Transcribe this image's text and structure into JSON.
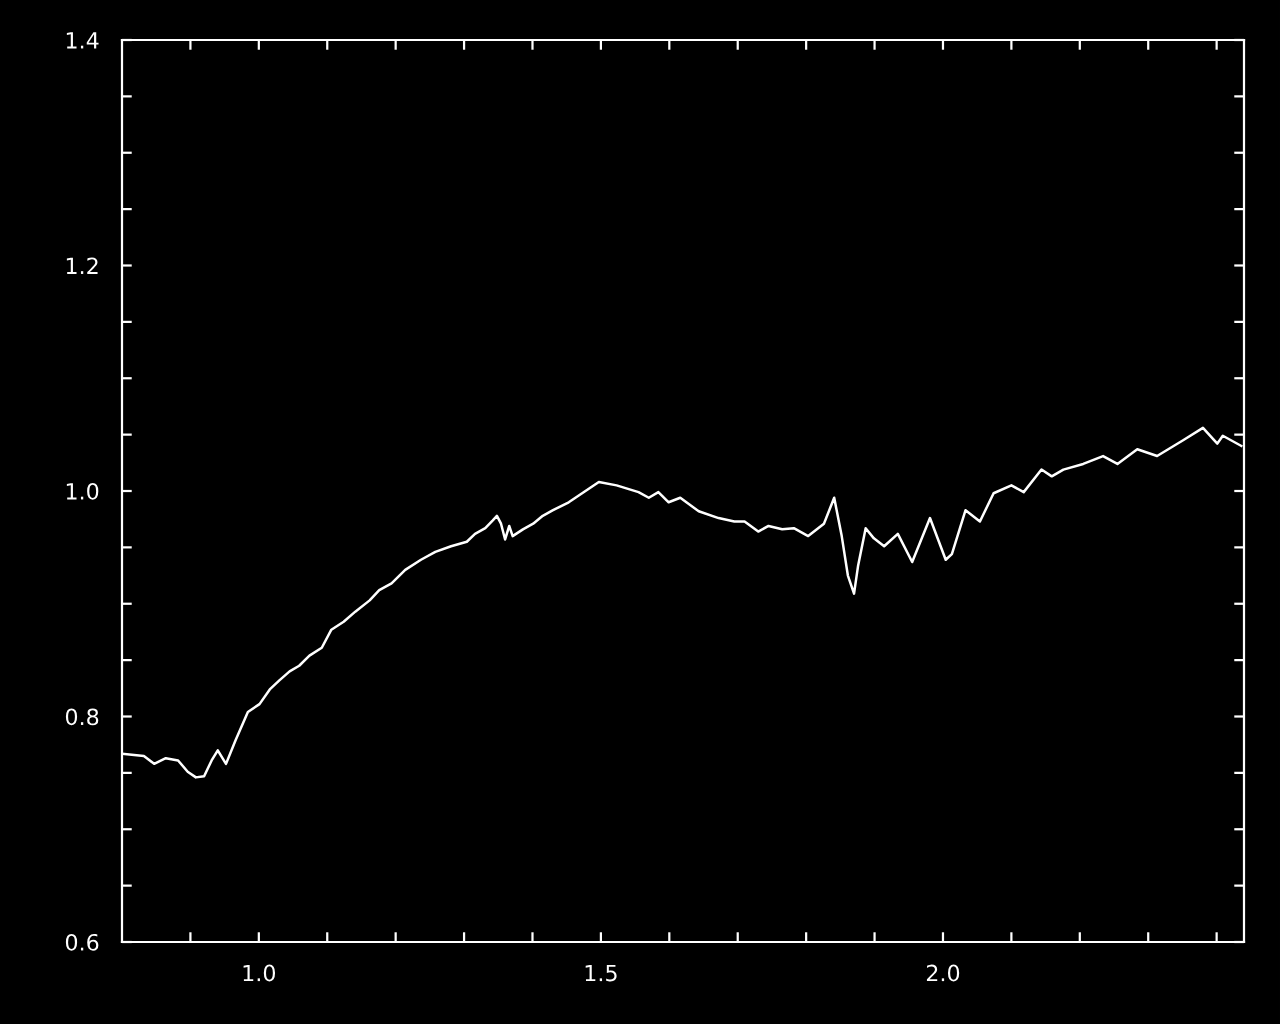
{
  "chart_data": {
    "type": "line",
    "xlim": [
      0.8,
      2.44
    ],
    "ylim": [
      0.6,
      1.4
    ],
    "xticks": [
      {
        "value": 0.9,
        "label": null
      },
      {
        "value": 1.0,
        "label": "1.0"
      },
      {
        "value": 1.1,
        "label": null
      },
      {
        "value": 1.2,
        "label": null
      },
      {
        "value": 1.3,
        "label": null
      },
      {
        "value": 1.4,
        "label": null
      },
      {
        "value": 1.5,
        "label": "1.5"
      },
      {
        "value": 1.6,
        "label": null
      },
      {
        "value": 1.7,
        "label": null
      },
      {
        "value": 1.8,
        "label": null
      },
      {
        "value": 1.9,
        "label": null
      },
      {
        "value": 2.0,
        "label": "2.0"
      },
      {
        "value": 2.1,
        "label": null
      },
      {
        "value": 2.2,
        "label": null
      },
      {
        "value": 2.3,
        "label": null
      },
      {
        "value": 2.4,
        "label": null
      }
    ],
    "yticks": [
      {
        "value": 0.6,
        "label": "0.6"
      },
      {
        "value": 0.65,
        "label": null
      },
      {
        "value": 0.7,
        "label": null
      },
      {
        "value": 0.75,
        "label": null
      },
      {
        "value": 0.8,
        "label": "0.8"
      },
      {
        "value": 0.85,
        "label": null
      },
      {
        "value": 0.9,
        "label": null
      },
      {
        "value": 0.95,
        "label": null
      },
      {
        "value": 1.0,
        "label": "1.0"
      },
      {
        "value": 1.05,
        "label": null
      },
      {
        "value": 1.1,
        "label": null
      },
      {
        "value": 1.15,
        "label": null
      },
      {
        "value": 1.2,
        "label": "1.2"
      },
      {
        "value": 1.25,
        "label": null
      },
      {
        "value": 1.3,
        "label": null
      },
      {
        "value": 1.35,
        "label": null
      },
      {
        "value": 1.4,
        "label": "1.4"
      }
    ],
    "grid": false,
    "marker": "none",
    "line_style": "solid",
    "series": [
      {
        "color": "#ffffff",
        "x": [
          0.8,
          0.832,
          0.847,
          0.864,
          0.882,
          0.896,
          0.908,
          0.92,
          0.931,
          0.94,
          0.952,
          0.966,
          0.984,
          1.001,
          1.016,
          1.03,
          1.045,
          1.059,
          1.074,
          1.092,
          1.106,
          1.124,
          1.141,
          1.162,
          1.176,
          1.194,
          1.214,
          1.237,
          1.258,
          1.281,
          1.304,
          1.316,
          1.331,
          1.342,
          1.348,
          1.354,
          1.36,
          1.366,
          1.371,
          1.386,
          1.401,
          1.415,
          1.43,
          1.453,
          1.497,
          1.523,
          1.555,
          1.57,
          1.584,
          1.599,
          1.616,
          1.643,
          1.672,
          1.695,
          1.71,
          1.73,
          1.745,
          1.765,
          1.782,
          1.803,
          1.826,
          1.841,
          1.852,
          1.861,
          1.87,
          1.876,
          1.887,
          1.899,
          1.914,
          1.934,
          1.955,
          1.981,
          2.004,
          2.013,
          2.033,
          2.054,
          2.074,
          2.1,
          2.118,
          2.144,
          2.159,
          2.176,
          2.205,
          2.234,
          2.255,
          2.284,
          2.313,
          2.351,
          2.38,
          2.401,
          2.409,
          2.436
        ],
        "values": [
          0.767,
          0.765,
          0.758,
          0.763,
          0.761,
          0.751,
          0.746,
          0.747,
          0.761,
          0.77,
          0.758,
          0.779,
          0.804,
          0.811,
          0.824,
          0.832,
          0.84,
          0.845,
          0.854,
          0.861,
          0.877,
          0.884,
          0.893,
          0.903,
          0.912,
          0.918,
          0.93,
          0.939,
          0.946,
          0.951,
          0.955,
          0.962,
          0.967,
          0.974,
          0.978,
          0.971,
          0.957,
          0.969,
          0.96,
          0.966,
          0.971,
          0.978,
          0.983,
          0.99,
          1.008,
          1.005,
          0.999,
          0.994,
          0.999,
          0.99,
          0.994,
          0.982,
          0.976,
          0.973,
          0.973,
          0.964,
          0.969,
          0.966,
          0.967,
          0.96,
          0.971,
          0.994,
          0.96,
          0.925,
          0.909,
          0.934,
          0.967,
          0.958,
          0.951,
          0.962,
          0.937,
          0.976,
          0.939,
          0.944,
          0.983,
          0.973,
          0.998,
          1.005,
          0.999,
          1.019,
          1.013,
          1.019,
          1.024,
          1.031,
          1.024,
          1.037,
          1.031,
          1.045,
          1.056,
          1.042,
          1.049,
          1.04
        ]
      }
    ]
  }
}
